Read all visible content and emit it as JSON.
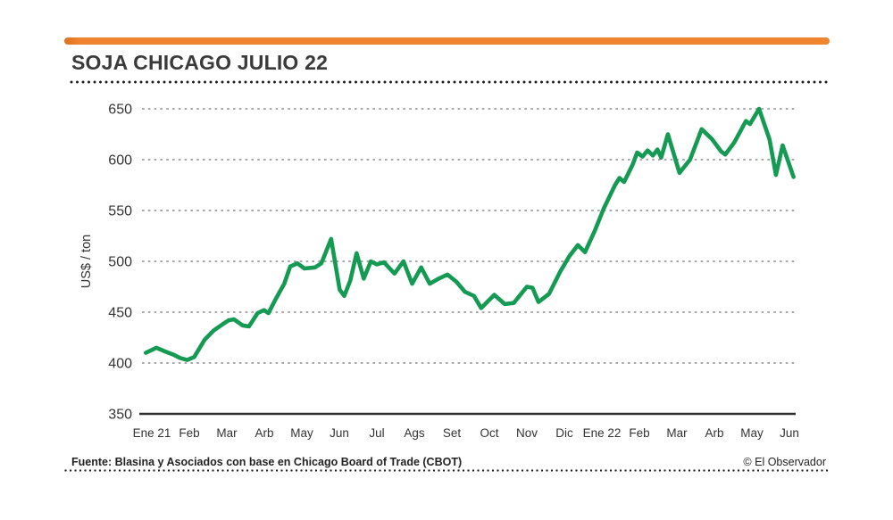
{
  "header": {
    "title": "SOJA CHICAGO JULIO 22"
  },
  "footer": {
    "source": "Fuente: Blasina y Asociados con base en Chicago Board of Trade (CBOT)",
    "credit": "© El Observador"
  },
  "colors": {
    "accent_bar": "#ef8430",
    "line": "#149a52",
    "axis_text": "#333333",
    "solid_axis": "#2e2e2e",
    "gridline": "#8c8c8c"
  },
  "chart_data": {
    "type": "line",
    "title": "SOJA CHICAGO JULIO 22",
    "xlabel": "",
    "ylabel": "US$ / ton",
    "ylim": [
      350,
      650
    ],
    "yticks": [
      650,
      600,
      550,
      500,
      450,
      400,
      350
    ],
    "grid": "dotted horizontal, solid baseline at 350",
    "legend": "none",
    "x_labels": [
      "Ene 21",
      "Feb",
      "Mar",
      "Arb",
      "May",
      "Jun",
      "Jul",
      "Ags",
      "Set",
      "Oct",
      "Nov",
      "Dic",
      "Ene 22",
      "Feb",
      "Mar",
      "Arb",
      "May",
      "Jun"
    ],
    "x_unit": "months since Ene 2021",
    "line_color": "#149a52",
    "series": [
      {
        "name": "Soja Chicago Julio 22 (US$/ton)",
        "points": [
          [
            -0.16,
            410
          ],
          [
            0.12,
            415
          ],
          [
            0.31,
            412
          ],
          [
            0.59,
            408
          ],
          [
            0.75,
            405
          ],
          [
            0.94,
            403
          ],
          [
            1.13,
            406
          ],
          [
            1.41,
            423
          ],
          [
            1.65,
            432
          ],
          [
            1.88,
            438
          ],
          [
            2.05,
            442
          ],
          [
            2.19,
            443
          ],
          [
            2.42,
            437
          ],
          [
            2.59,
            436
          ],
          [
            2.82,
            449
          ],
          [
            2.99,
            452
          ],
          [
            3.11,
            449
          ],
          [
            3.29,
            462
          ],
          [
            3.53,
            478
          ],
          [
            3.69,
            495
          ],
          [
            3.88,
            498
          ],
          [
            4.07,
            493
          ],
          [
            4.35,
            494
          ],
          [
            4.52,
            498
          ],
          [
            4.78,
            522
          ],
          [
            5.01,
            472
          ],
          [
            5.13,
            466
          ],
          [
            5.29,
            481
          ],
          [
            5.46,
            508
          ],
          [
            5.65,
            483
          ],
          [
            5.84,
            500
          ],
          [
            6.0,
            497
          ],
          [
            6.19,
            499
          ],
          [
            6.47,
            488
          ],
          [
            6.71,
            500
          ],
          [
            6.94,
            478
          ],
          [
            7.18,
            494
          ],
          [
            7.41,
            478
          ],
          [
            7.65,
            483
          ],
          [
            7.88,
            487
          ],
          [
            8.12,
            480
          ],
          [
            8.35,
            470
          ],
          [
            8.59,
            466
          ],
          [
            8.78,
            454
          ],
          [
            9.13,
            467
          ],
          [
            9.41,
            458
          ],
          [
            9.65,
            459
          ],
          [
            10.0,
            475
          ],
          [
            10.15,
            474
          ],
          [
            10.31,
            460
          ],
          [
            10.59,
            468
          ],
          [
            10.89,
            490
          ],
          [
            11.13,
            505
          ],
          [
            11.36,
            516
          ],
          [
            11.55,
            509
          ],
          [
            11.81,
            530
          ],
          [
            12.05,
            552
          ],
          [
            12.35,
            575
          ],
          [
            12.47,
            582
          ],
          [
            12.59,
            578
          ],
          [
            12.82,
            595
          ],
          [
            12.94,
            607
          ],
          [
            13.08,
            603
          ],
          [
            13.22,
            609
          ],
          [
            13.36,
            604
          ],
          [
            13.48,
            610
          ],
          [
            13.58,
            602
          ],
          [
            13.76,
            625
          ],
          [
            14.07,
            587
          ],
          [
            14.35,
            600
          ],
          [
            14.66,
            630
          ],
          [
            14.94,
            620
          ],
          [
            15.18,
            608
          ],
          [
            15.29,
            605
          ],
          [
            15.53,
            617
          ],
          [
            15.84,
            638
          ],
          [
            15.95,
            635
          ],
          [
            16.19,
            650
          ],
          [
            16.47,
            620
          ],
          [
            16.64,
            585
          ],
          [
            16.82,
            614
          ],
          [
            17.11,
            583
          ]
        ]
      }
    ]
  }
}
